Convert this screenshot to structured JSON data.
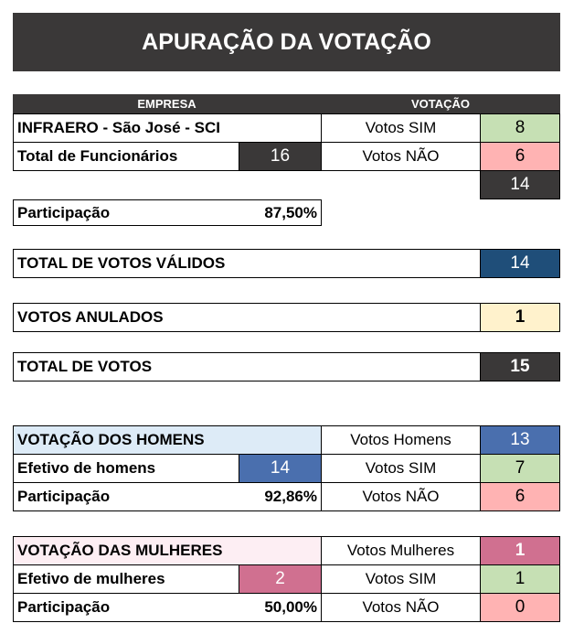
{
  "title": "APURAÇÃO DA VOTAÇÃO",
  "headers": {
    "empresa": "EMPRESA",
    "votacao": "VOTAÇÃO"
  },
  "empresa": {
    "name": "INFRAERO - São José - SCI",
    "total_label": "Total de Funcionários",
    "total_value": "16",
    "votos_sim_label": "Votos SIM",
    "votos_sim_value": "8",
    "votos_nao_label": "Votos NÃO",
    "votos_nao_value": "6",
    "subtotal": "14",
    "participacao_label": "Participação",
    "participacao_value": "87,50%"
  },
  "summary": {
    "validos_label": "TOTAL DE VOTOS VÁLIDOS",
    "validos_value": "14",
    "anulados_label": "VOTOS ANULADOS",
    "anulados_value": "1",
    "total_label": "TOTAL DE VOTOS",
    "total_value": "15"
  },
  "homens": {
    "title": "VOTAÇÃO DOS HOMENS",
    "votos_label": "Votos Homens",
    "votos_value": "13",
    "efetivo_label": "Efetivo de homens",
    "efetivo_value": "14",
    "sim_label": "Votos SIM",
    "sim_value": "7",
    "participacao_label": "Participação",
    "participacao_value": "92,86%",
    "nao_label": "Votos NÃO",
    "nao_value": "6"
  },
  "mulheres": {
    "title": "VOTAÇÃO DAS MULHERES",
    "votos_label": "Votos Mulheres",
    "votos_value": "1",
    "efetivo_label": "Efetivo de mulheres",
    "efetivo_value": "2",
    "sim_label": "Votos SIM",
    "sim_value": "1",
    "participacao_label": "Participação",
    "participacao_value": "50,00%",
    "nao_label": "Votos NÃO",
    "nao_value": "0"
  },
  "colors": {
    "dark": "#3a3838",
    "green": "#c6e0b4",
    "red": "#ffb3b3",
    "navy": "#1f4e79",
    "cream": "#fff2cc",
    "blue": "#4a6fae",
    "light_blue": "#ddebf7",
    "pink": "#d07090",
    "light_pink": "#fdeef3"
  }
}
